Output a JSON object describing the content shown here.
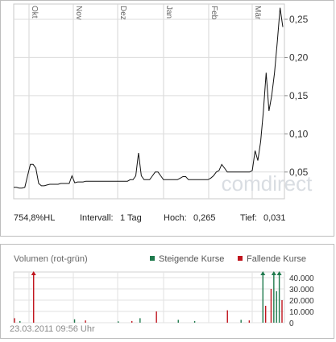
{
  "chart_data": [
    {
      "type": "line",
      "title": "",
      "x_labels": [
        "Okt",
        "Nov",
        "Dez",
        "Jan",
        "Feb",
        "Mär"
      ],
      "y_ticks": [
        "0,05",
        "0,10",
        "0,15",
        "0,20",
        "0,25"
      ],
      "ylim": [
        0.015,
        0.27
      ],
      "grid": true,
      "watermark": "comdirect",
      "series": [
        {
          "values": [
            0.03,
            0.03,
            0.029,
            0.029,
            0.03,
            0.045,
            0.06,
            0.06,
            0.055,
            0.035,
            0.032,
            0.032,
            0.033,
            0.034,
            0.034,
            0.034,
            0.034,
            0.035,
            0.035,
            0.035,
            0.035,
            0.045,
            0.036,
            0.037,
            0.037,
            0.037,
            0.038,
            0.038,
            0.038,
            0.038,
            0.038,
            0.038,
            0.038,
            0.038,
            0.038,
            0.038,
            0.038,
            0.038,
            0.038,
            0.038,
            0.038,
            0.038,
            0.04,
            0.04,
            0.045,
            0.075,
            0.045,
            0.04,
            0.04,
            0.04,
            0.045,
            0.05,
            0.05,
            0.045,
            0.04,
            0.04,
            0.04,
            0.04,
            0.04,
            0.04,
            0.042,
            0.044,
            0.044,
            0.04,
            0.04,
            0.04,
            0.04,
            0.04,
            0.04,
            0.04,
            0.04,
            0.042,
            0.045,
            0.05,
            0.052,
            0.06,
            0.055,
            0.05,
            0.05,
            0.05,
            0.05,
            0.05,
            0.05,
            0.05,
            0.05,
            0.05,
            0.052,
            0.078,
            0.065,
            0.09,
            0.13,
            0.18,
            0.13,
            0.15,
            0.18,
            0.22,
            0.265,
            0.24
          ]
        }
      ]
    },
    {
      "type": "bar",
      "title": "Volumen (rot-grün)",
      "y_ticks": [
        "0",
        "10.000",
        "20.000",
        "30.000",
        "40.000"
      ],
      "ylim": [
        0,
        45000
      ],
      "grid": true,
      "legend": [
        {
          "label": "Steigende Kurse",
          "color": "#1f7a4d"
        },
        {
          "label": "Fallende Kurse",
          "color": "#c0141d"
        }
      ],
      "series": [
        {
          "name": "Steigende Kurse",
          "color": "#1f7a4d",
          "points": [
            [
              2,
              1500
            ],
            [
              22,
              3000
            ],
            [
              38,
              1200
            ],
            [
              46,
              4000
            ],
            [
              60,
              2500
            ],
            [
              66,
              1500
            ],
            [
              83,
              2500
            ],
            [
              91,
              45000
            ],
            [
              95,
              45000
            ],
            [
              96,
              28000
            ],
            [
              97,
              45000
            ]
          ]
        },
        {
          "name": "Fallende Kurse",
          "color": "#c0141d",
          "points": [
            [
              0,
              4000
            ],
            [
              7,
              45000
            ],
            [
              26,
              2000
            ],
            [
              43,
              1500
            ],
            [
              52,
              10000
            ],
            [
              78,
              11000
            ],
            [
              86,
              2000
            ],
            [
              92,
              15000
            ],
            [
              94,
              30000
            ],
            [
              98,
              20000
            ]
          ]
        }
      ]
    }
  ],
  "stats": {
    "performance": "754,8%HL",
    "interval_label": "Intervall:",
    "interval_value": "1 Tag",
    "high_label": "Hoch:",
    "high_value": "0,265",
    "low_label": "Tief:",
    "low_value": "0,031"
  },
  "timestamp": "23.03.2011 09:56 Uhr"
}
